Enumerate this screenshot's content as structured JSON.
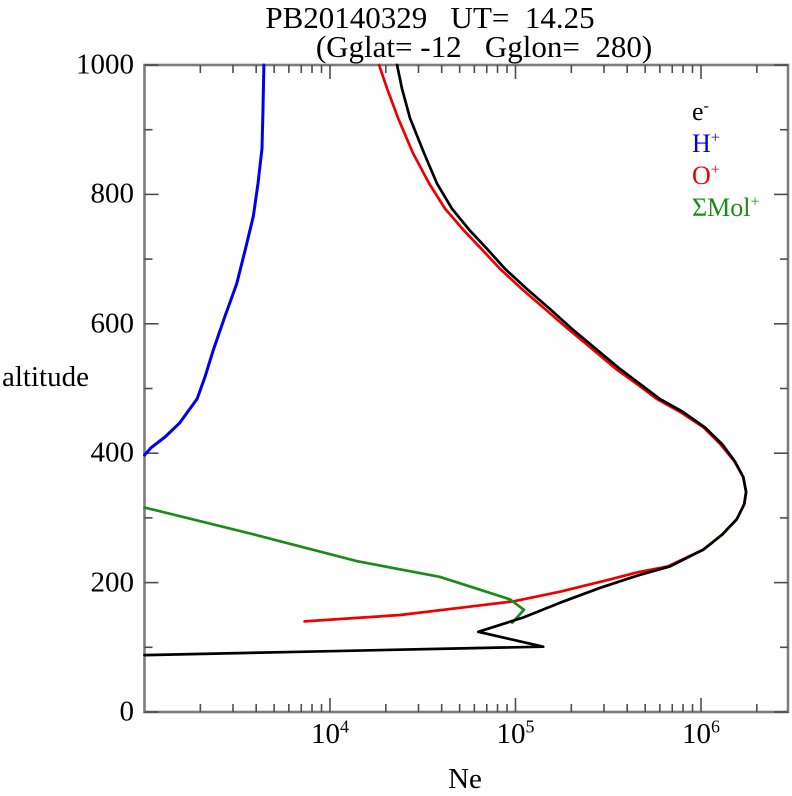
{
  "title": "PB20140329   UT=  14.25",
  "subtitle": "(Gglat= -12   Gglon=  280)",
  "axes": {
    "x_label": "Ne",
    "y_label": "altitude"
  },
  "legend": {
    "items": [
      {
        "id": "electron",
        "base": "e",
        "sup": "-",
        "color": "#000000"
      },
      {
        "id": "h-plus",
        "base": "H",
        "sup": "+",
        "color": "#0000ee"
      },
      {
        "id": "o-plus",
        "base": "O",
        "sup": "+",
        "color": "#ee0000"
      },
      {
        "id": "mol-plus",
        "base": "ΣMol",
        "sup": "+",
        "color": "#1a8c1a"
      }
    ]
  },
  "frame": {
    "color": "#7d7d7d",
    "tick_color": "#4d4d4d"
  },
  "chart_data": {
    "type": "line",
    "title": "PB20140329 UT= 14.25 (Gglat= -12 Gglon= 280)",
    "xlabel": "Ne",
    "ylabel": "altitude",
    "x_scale": "log",
    "x_range": [
      1000,
      2900000
    ],
    "y_range": [
      0,
      1000
    ],
    "x_tick_exponents": [
      4,
      5,
      6
    ],
    "y_major_ticks": [
      0,
      200,
      400,
      600,
      800,
      1000
    ],
    "y_minor_ticks": [
      100,
      300,
      500,
      700,
      900
    ],
    "grid": false,
    "legend_position": "upper right inside",
    "series": [
      {
        "name": "e-",
        "color": "#000000",
        "points": [
          [
            1000,
            88
          ],
          [
            6900,
            93
          ],
          [
            44000,
            98
          ],
          [
            141000,
            101
          ],
          [
            63000,
            124
          ],
          [
            110000,
            146
          ],
          [
            174000,
            169
          ],
          [
            286000,
            192
          ],
          [
            469000,
            212
          ],
          [
            681000,
            225
          ],
          [
            1030000,
            251
          ],
          [
            1300000,
            274
          ],
          [
            1560000,
            298
          ],
          [
            1710000,
            321
          ],
          [
            1750000,
            340
          ],
          [
            1690000,
            363
          ],
          [
            1520000,
            388
          ],
          [
            1300000,
            414
          ],
          [
            1050000,
            440
          ],
          [
            798000,
            464
          ],
          [
            600000,
            484
          ],
          [
            469000,
            507
          ],
          [
            367000,
            530
          ],
          [
            272000,
            561
          ],
          [
            202000,
            592
          ],
          [
            153000,
            623
          ],
          [
            115000,
            654
          ],
          [
            87800,
            685
          ],
          [
            70100,
            716
          ],
          [
            56800,
            744
          ],
          [
            45400,
            778
          ],
          [
            37700,
            817
          ],
          [
            32100,
            864
          ],
          [
            27000,
            918
          ],
          [
            24400,
            964
          ],
          [
            23000,
            1000
          ]
        ]
      },
      {
        "name": "H+",
        "color": "#0000ee",
        "points": [
          [
            1000,
            397
          ],
          [
            1090,
            409
          ],
          [
            1290,
            425
          ],
          [
            1550,
            447
          ],
          [
            1920,
            484
          ],
          [
            2120,
            518
          ],
          [
            2340,
            558
          ],
          [
            2710,
            611
          ],
          [
            3140,
            662
          ],
          [
            3480,
            713
          ],
          [
            3860,
            766
          ],
          [
            4090,
            817
          ],
          [
            4300,
            871
          ],
          [
            4350,
            926
          ],
          [
            4400,
            1000
          ]
        ]
      },
      {
        "name": "O+",
        "color": "#ee0000",
        "points": [
          [
            7300,
            140
          ],
          [
            23900,
            150
          ],
          [
            50200,
            161
          ],
          [
            97000,
            171
          ],
          [
            174000,
            186
          ],
          [
            323000,
            205
          ],
          [
            457000,
            216
          ],
          [
            664000,
            225
          ],
          [
            1030000,
            251
          ],
          [
            1300000,
            274
          ],
          [
            1560000,
            298
          ],
          [
            1710000,
            321
          ],
          [
            1750000,
            340
          ],
          [
            1690000,
            363
          ],
          [
            1510000,
            388
          ],
          [
            1270000,
            414
          ],
          [
            1030000,
            440
          ],
          [
            770000,
            464
          ],
          [
            578000,
            484
          ],
          [
            452000,
            507
          ],
          [
            349000,
            530
          ],
          [
            259000,
            561
          ],
          [
            192000,
            592
          ],
          [
            144000,
            623
          ],
          [
            108000,
            654
          ],
          [
            82500,
            685
          ],
          [
            65300,
            716
          ],
          [
            52800,
            744
          ],
          [
            41700,
            778
          ],
          [
            34200,
            817
          ],
          [
            28000,
            864
          ],
          [
            23300,
            918
          ],
          [
            20300,
            964
          ],
          [
            18400,
            1000
          ]
        ]
      },
      {
        "name": "SigmaMol+",
        "color": "#1a8c1a",
        "points": [
          [
            1000,
            316
          ],
          [
            3700,
            276
          ],
          [
            14000,
            233
          ],
          [
            39000,
            209
          ],
          [
            64400,
            189
          ],
          [
            93500,
            174
          ],
          [
            111000,
            158
          ],
          [
            104000,
            149
          ],
          [
            96000,
            138
          ]
        ]
      }
    ]
  }
}
